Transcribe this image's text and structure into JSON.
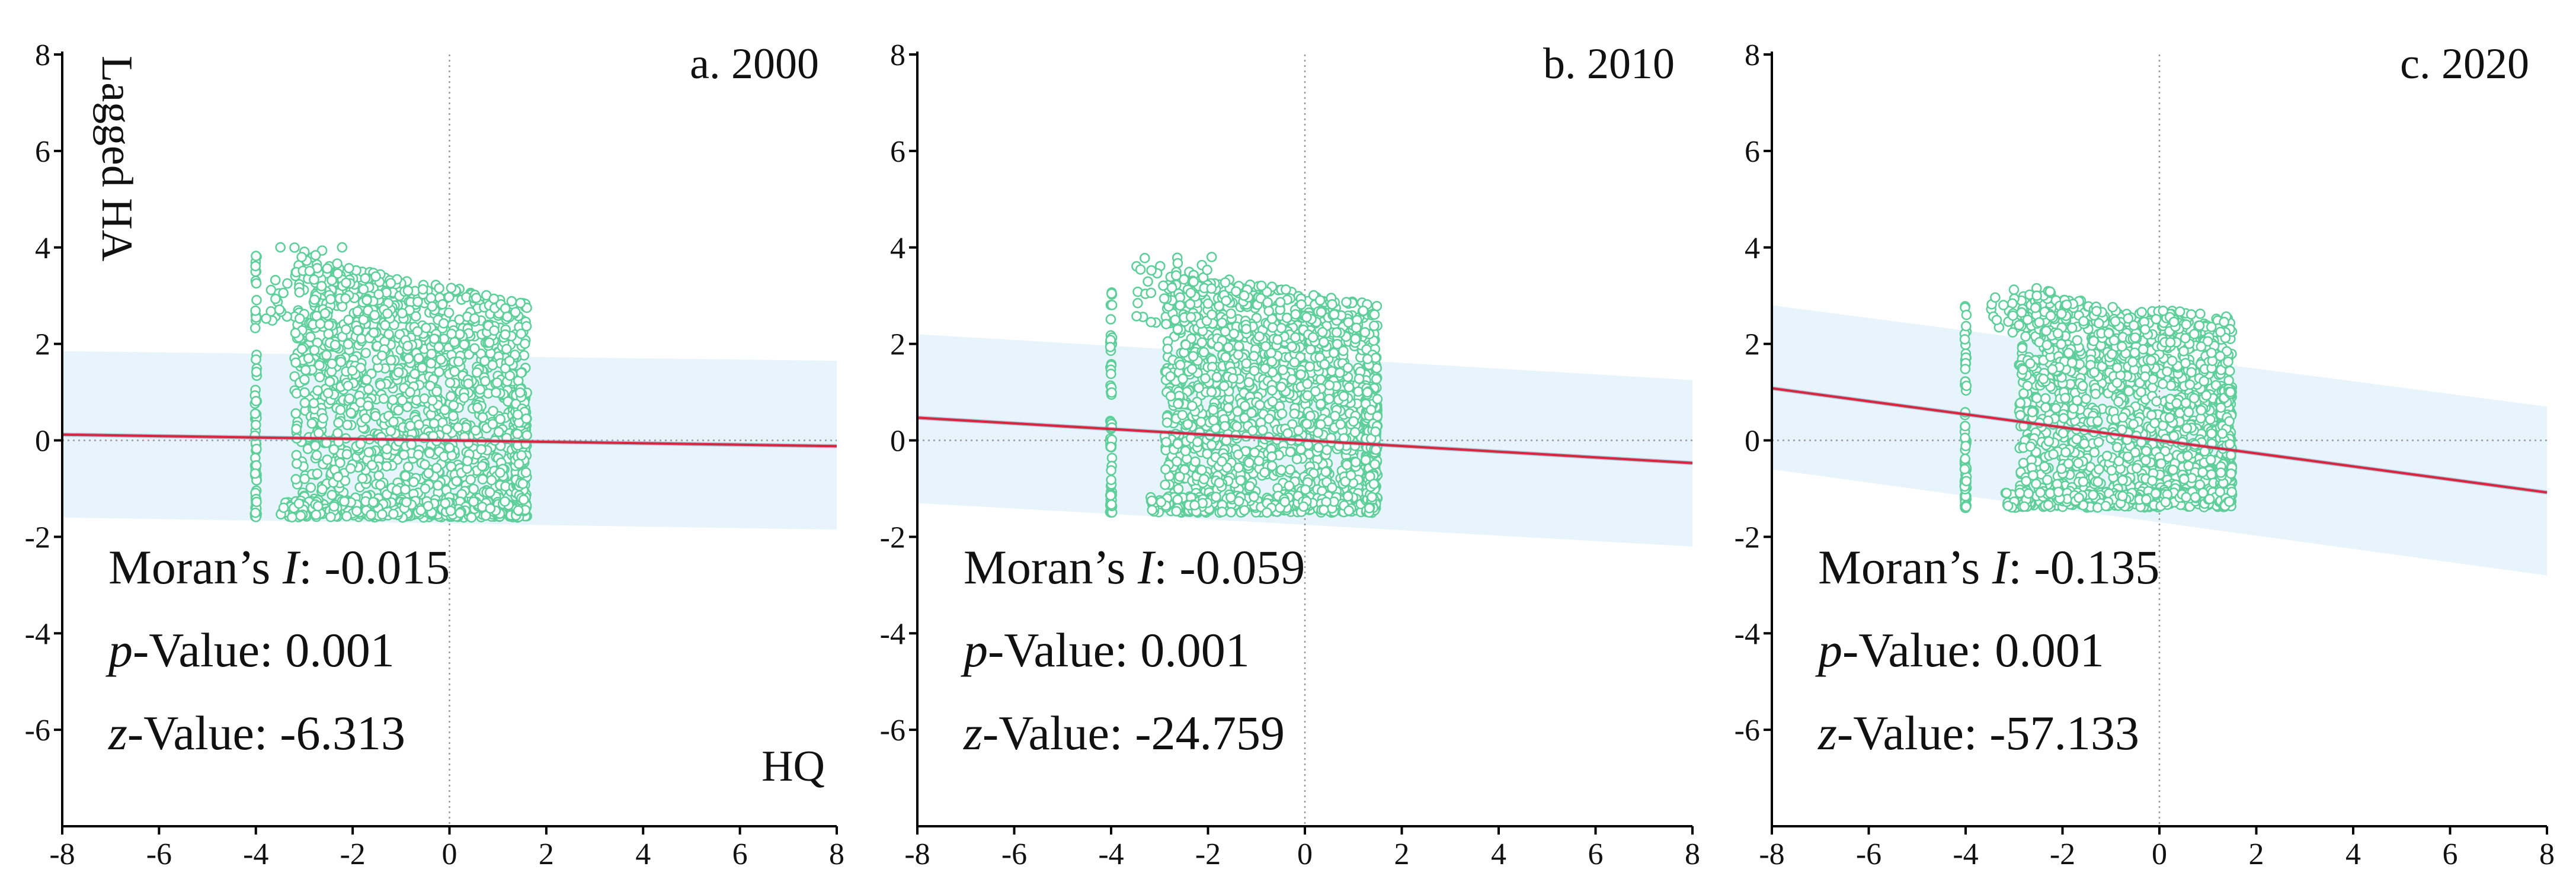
{
  "colors": {
    "points": "#5ecf9b",
    "regression": "#d7263d",
    "band": "#e8f4fb",
    "guide": "#9a9a9a",
    "axis": "#000000"
  },
  "chart_data": [
    {
      "type": "scatter",
      "panel_label": "a. 2000",
      "xlabel": "HQ",
      "ylabel": "Lagged HA",
      "xlim": [
        -8,
        8
      ],
      "ylim": [
        -8,
        8
      ],
      "xticks": [
        "-8",
        "-6",
        "-4",
        "-2",
        "0",
        "2",
        "4",
        "6",
        "8"
      ],
      "yticks": [
        "8",
        "6",
        "4",
        "2",
        "0",
        "-2",
        "-4",
        "-6"
      ],
      "grid": false,
      "reference_lines": {
        "x": 0,
        "y": 0
      },
      "point_cloud": {
        "x_range": [
          -3.8,
          1.6
        ],
        "y_range": [
          -1.6,
          4.1
        ],
        "column_x": -4.0,
        "column_y_range": [
          -1.6,
          4.0
        ]
      },
      "regression_line": {
        "x": [
          -8,
          8
        ],
        "y": [
          0.12,
          -0.12
        ]
      },
      "confidence_band": {
        "x": [
          -8,
          8
        ],
        "upper": [
          1.85,
          1.65
        ],
        "lower": [
          -1.6,
          -1.85
        ]
      },
      "stats": {
        "moran_label": "Moran’s ",
        "moran_symbol": "I",
        "moran_value": ": -0.015",
        "p_symbol": "p",
        "p_label": "-Value: ",
        "p_value": "0.001",
        "z_symbol": "z",
        "z_label": "-Value: ",
        "z_value": "-6.313"
      }
    },
    {
      "type": "scatter",
      "panel_label": "b. 2010",
      "xlabel": "",
      "ylabel": "",
      "xlim": [
        -8,
        8
      ],
      "ylim": [
        -8,
        8
      ],
      "xticks": [
        "-8",
        "-6",
        "-4",
        "-2",
        "0",
        "2",
        "4",
        "6",
        "8"
      ],
      "yticks": [
        "8",
        "6",
        "4",
        "2",
        "0",
        "-2",
        "-4",
        "-6"
      ],
      "grid": false,
      "reference_lines": {
        "x": 0,
        "y": 0
      },
      "point_cloud": {
        "x_range": [
          -3.5,
          1.5
        ],
        "y_range": [
          -1.5,
          3.9
        ],
        "column_x": -4.0,
        "column_y_range": [
          -1.5,
          3.2
        ]
      },
      "regression_line": {
        "x": [
          -8,
          8
        ],
        "y": [
          0.47,
          -0.47
        ]
      },
      "confidence_band": {
        "x": [
          -8,
          8
        ],
        "upper": [
          2.2,
          1.25
        ],
        "lower": [
          -1.3,
          -2.2
        ]
      },
      "stats": {
        "moran_label": "Moran’s ",
        "moran_symbol": "I",
        "moran_value": ": -0.059",
        "p_symbol": "p",
        "p_label": "-Value: ",
        "p_value": "0.001",
        "z_symbol": "z",
        "z_label": "-Value: ",
        "z_value": "-24.759"
      }
    },
    {
      "type": "scatter",
      "panel_label": "c. 2020",
      "xlabel": "",
      "ylabel": "",
      "xlim": [
        -8,
        8
      ],
      "ylim": [
        -8,
        8
      ],
      "xticks": [
        "-8",
        "-6",
        "-4",
        "-2",
        "0",
        "2",
        "4",
        "6",
        "8"
      ],
      "yticks": [
        "8",
        "6",
        "4",
        "2",
        "0",
        "-2",
        "-4",
        "-6"
      ],
      "grid": false,
      "reference_lines": {
        "x": 0,
        "y": 0
      },
      "point_cloud": {
        "x_range": [
          -3.5,
          1.5
        ],
        "y_range": [
          -1.4,
          3.3
        ],
        "column_x": -4.0,
        "column_y_range": [
          -1.4,
          2.8
        ]
      },
      "regression_line": {
        "x": [
          -8,
          8
        ],
        "y": [
          1.08,
          -1.08
        ]
      },
      "confidence_band": {
        "x": [
          -8,
          8
        ],
        "upper": [
          2.8,
          0.7
        ],
        "lower": [
          -0.6,
          -2.8
        ]
      },
      "stats": {
        "moran_label": "Moran’s ",
        "moran_symbol": "I",
        "moran_value": ": -0.135",
        "p_symbol": "p",
        "p_label": "-Value: ",
        "p_value": "0.001",
        "z_symbol": "z",
        "z_label": "-Value: ",
        "z_value": "-57.133"
      }
    }
  ]
}
